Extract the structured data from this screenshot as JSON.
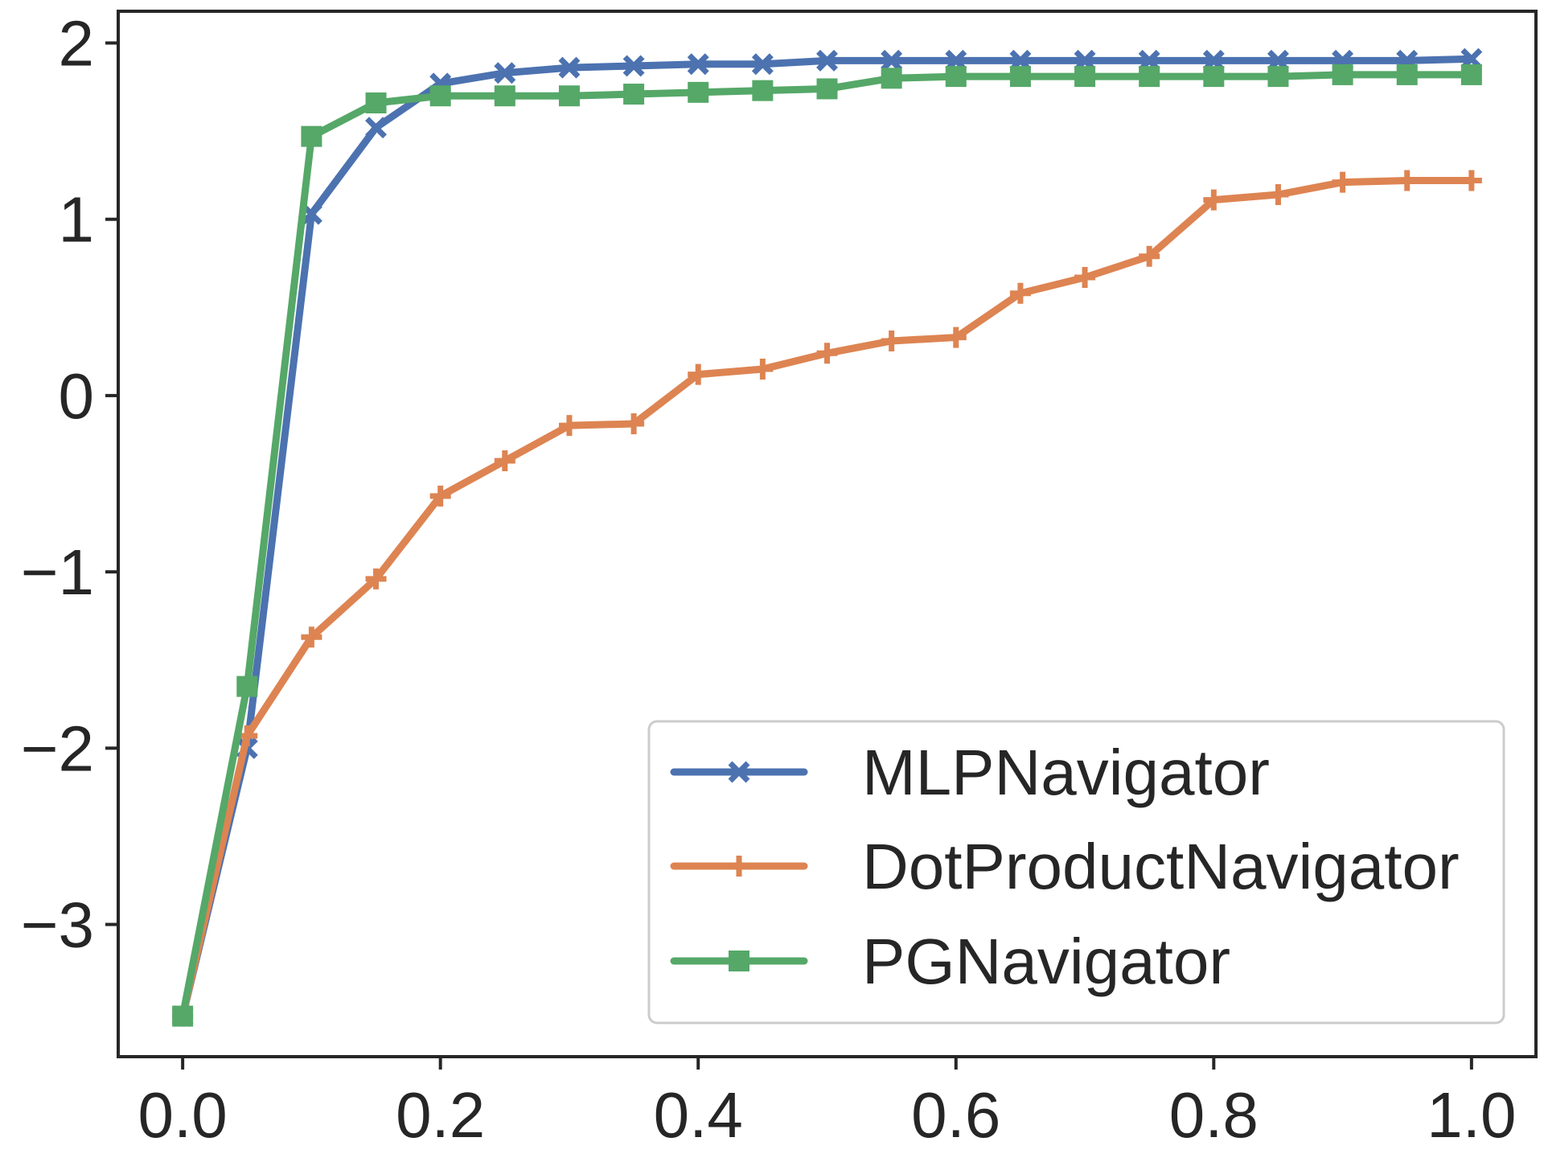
{
  "chart_data": {
    "type": "line",
    "title": "",
    "xlabel": "",
    "ylabel": "",
    "xlim": [
      -0.05,
      1.05
    ],
    "ylim": [
      -3.75,
      2.18
    ],
    "x_ticks": [
      0.0,
      0.2,
      0.4,
      0.6,
      0.8,
      1.0
    ],
    "x_tick_labels": [
      "0.0",
      "0.2",
      "0.4",
      "0.6",
      "0.8",
      "1.0"
    ],
    "y_ticks": [
      -3,
      -2,
      -1,
      0,
      1,
      2
    ],
    "y_tick_labels": [
      "−3",
      "−2",
      "−1",
      "0",
      "1",
      "2"
    ],
    "grid": false,
    "legend_position": "lower-right",
    "x": [
      0.0,
      0.05,
      0.1,
      0.15,
      0.2,
      0.25,
      0.3,
      0.35,
      0.4,
      0.45,
      0.5,
      0.55,
      0.6,
      0.65,
      0.7,
      0.75,
      0.8,
      0.85,
      0.9,
      0.95,
      1.0
    ],
    "series": [
      {
        "name": "MLPNavigator",
        "color": "#4c72b0",
        "marker": "x",
        "values": [
          -3.52,
          -2.0,
          1.03,
          1.52,
          1.77,
          1.83,
          1.86,
          1.87,
          1.88,
          1.88,
          1.9,
          1.9,
          1.9,
          1.9,
          1.9,
          1.9,
          1.9,
          1.9,
          1.9,
          1.9,
          1.91
        ]
      },
      {
        "name": "DotProductNavigator",
        "color": "#dd8452",
        "marker": "plus",
        "values": [
          -3.52,
          -1.93,
          -1.37,
          -1.04,
          -0.57,
          -0.37,
          -0.17,
          -0.16,
          0.12,
          0.15,
          0.24,
          0.31,
          0.33,
          0.58,
          0.67,
          0.79,
          1.11,
          1.14,
          1.21,
          1.22,
          1.22
        ]
      },
      {
        "name": "PGNavigator",
        "color": "#55a868",
        "marker": "square",
        "values": [
          -3.52,
          -1.65,
          1.47,
          1.66,
          1.7,
          1.7,
          1.7,
          1.71,
          1.72,
          1.73,
          1.74,
          1.8,
          1.81,
          1.81,
          1.81,
          1.81,
          1.81,
          1.81,
          1.82,
          1.82,
          1.82
        ]
      }
    ]
  }
}
